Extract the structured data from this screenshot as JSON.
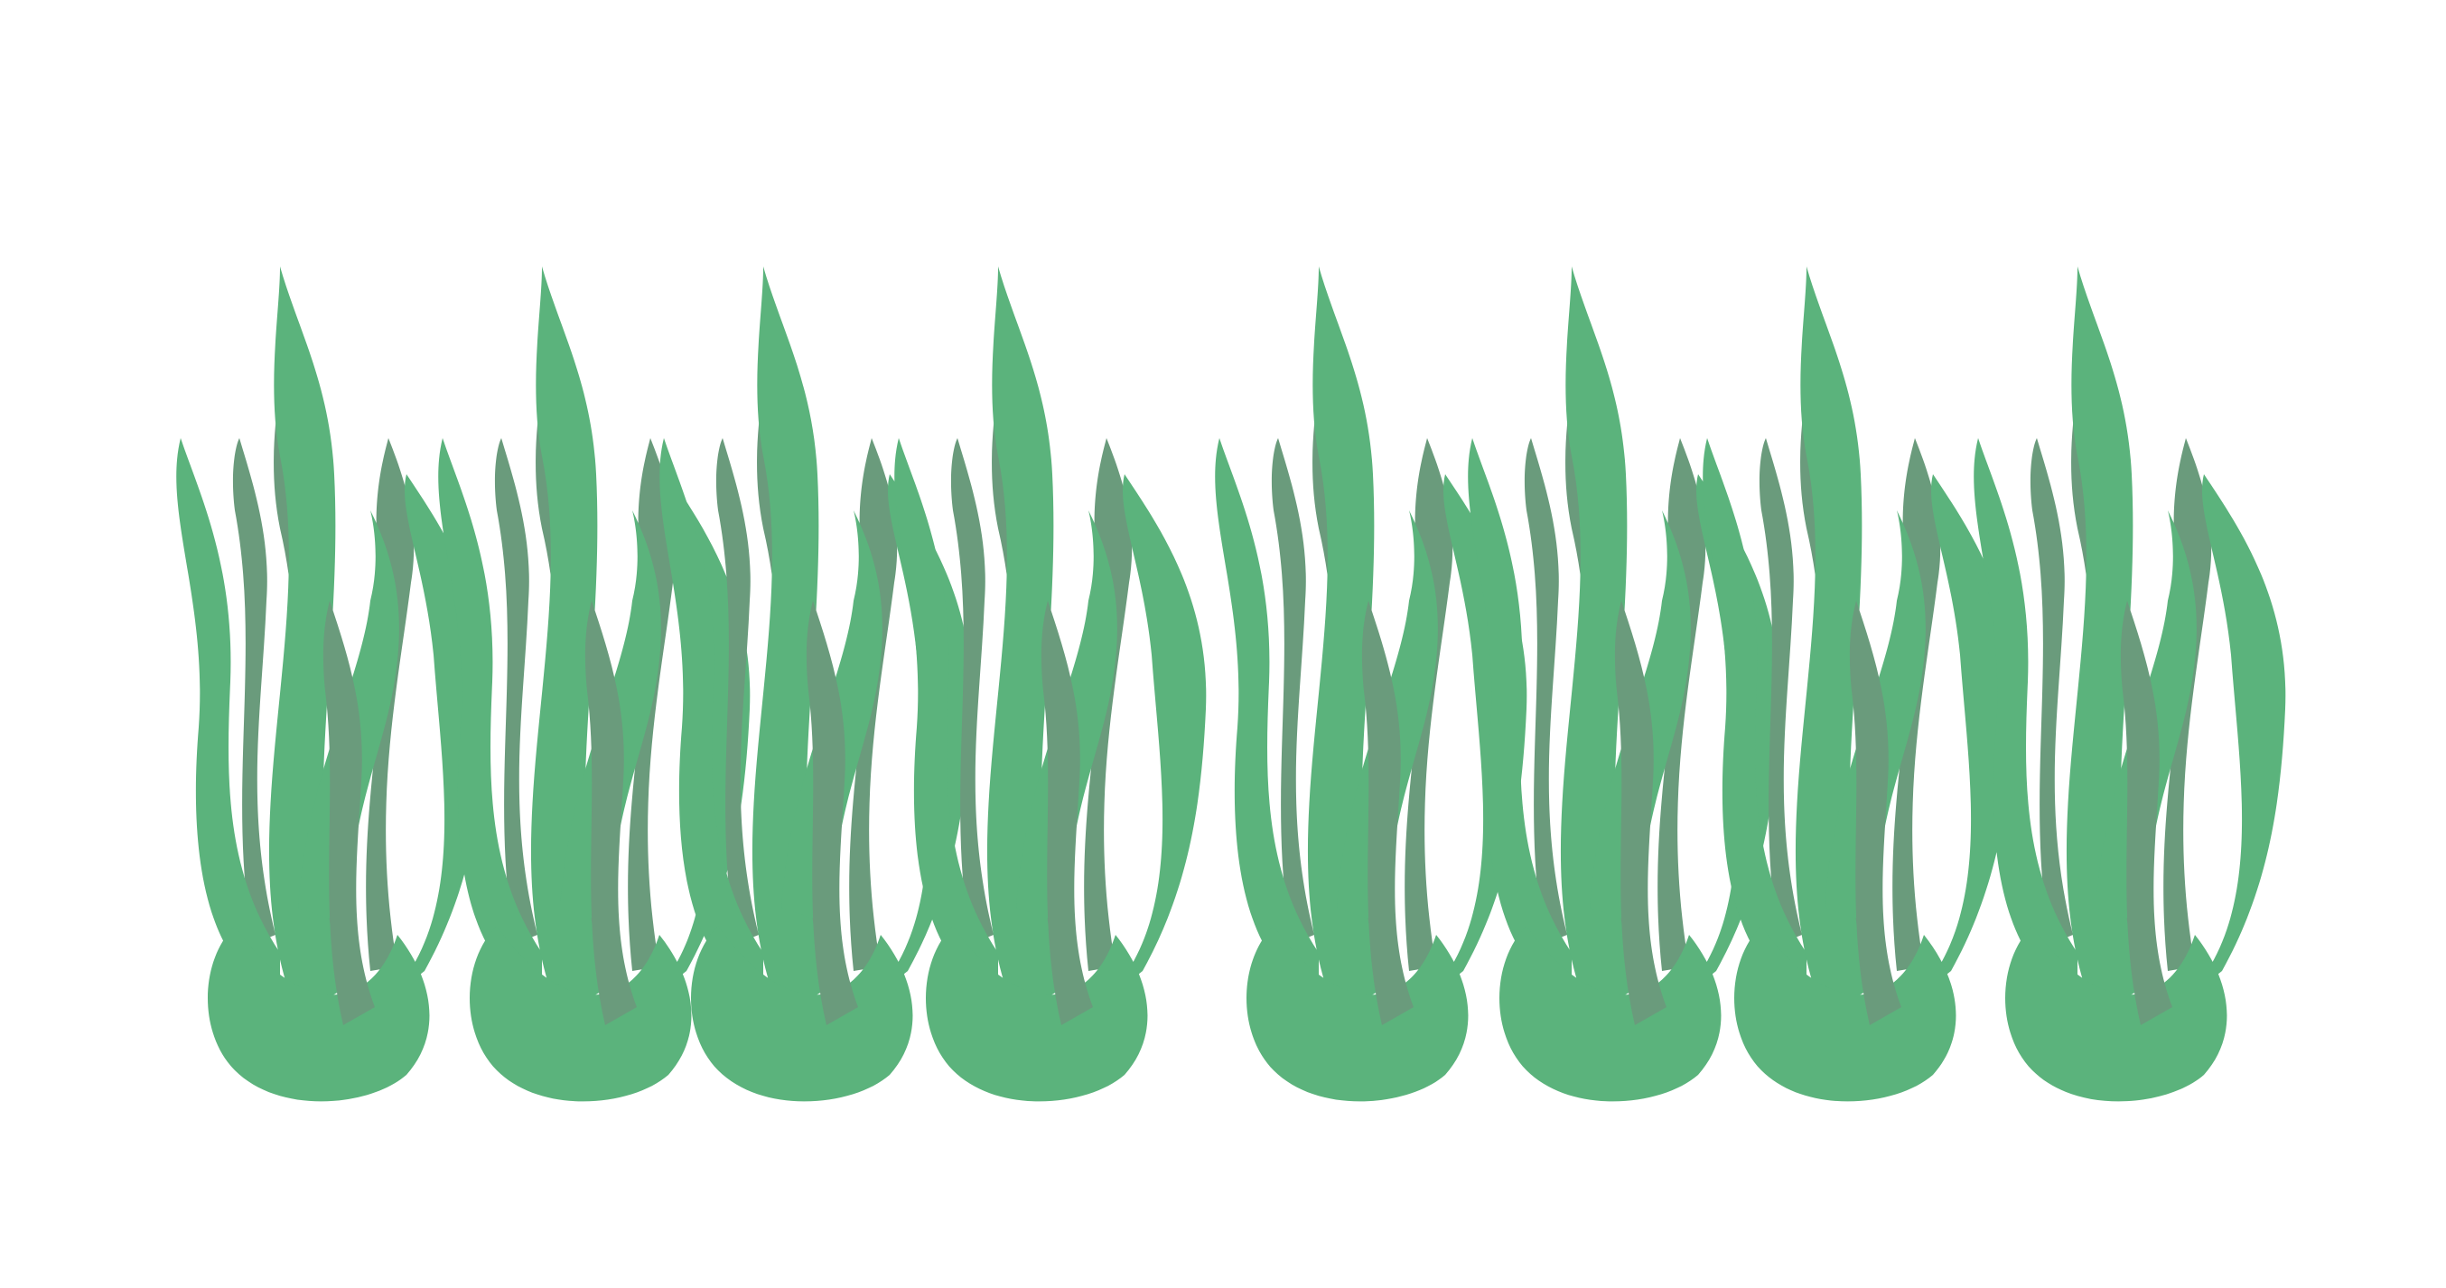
{
  "illustration": {
    "subject": "seaweed-clumps",
    "clump_count": 8,
    "colors": {
      "background": "#ffffff",
      "blade_light": "#5bb37c",
      "blade_dark": "#6a9b7c"
    }
  }
}
